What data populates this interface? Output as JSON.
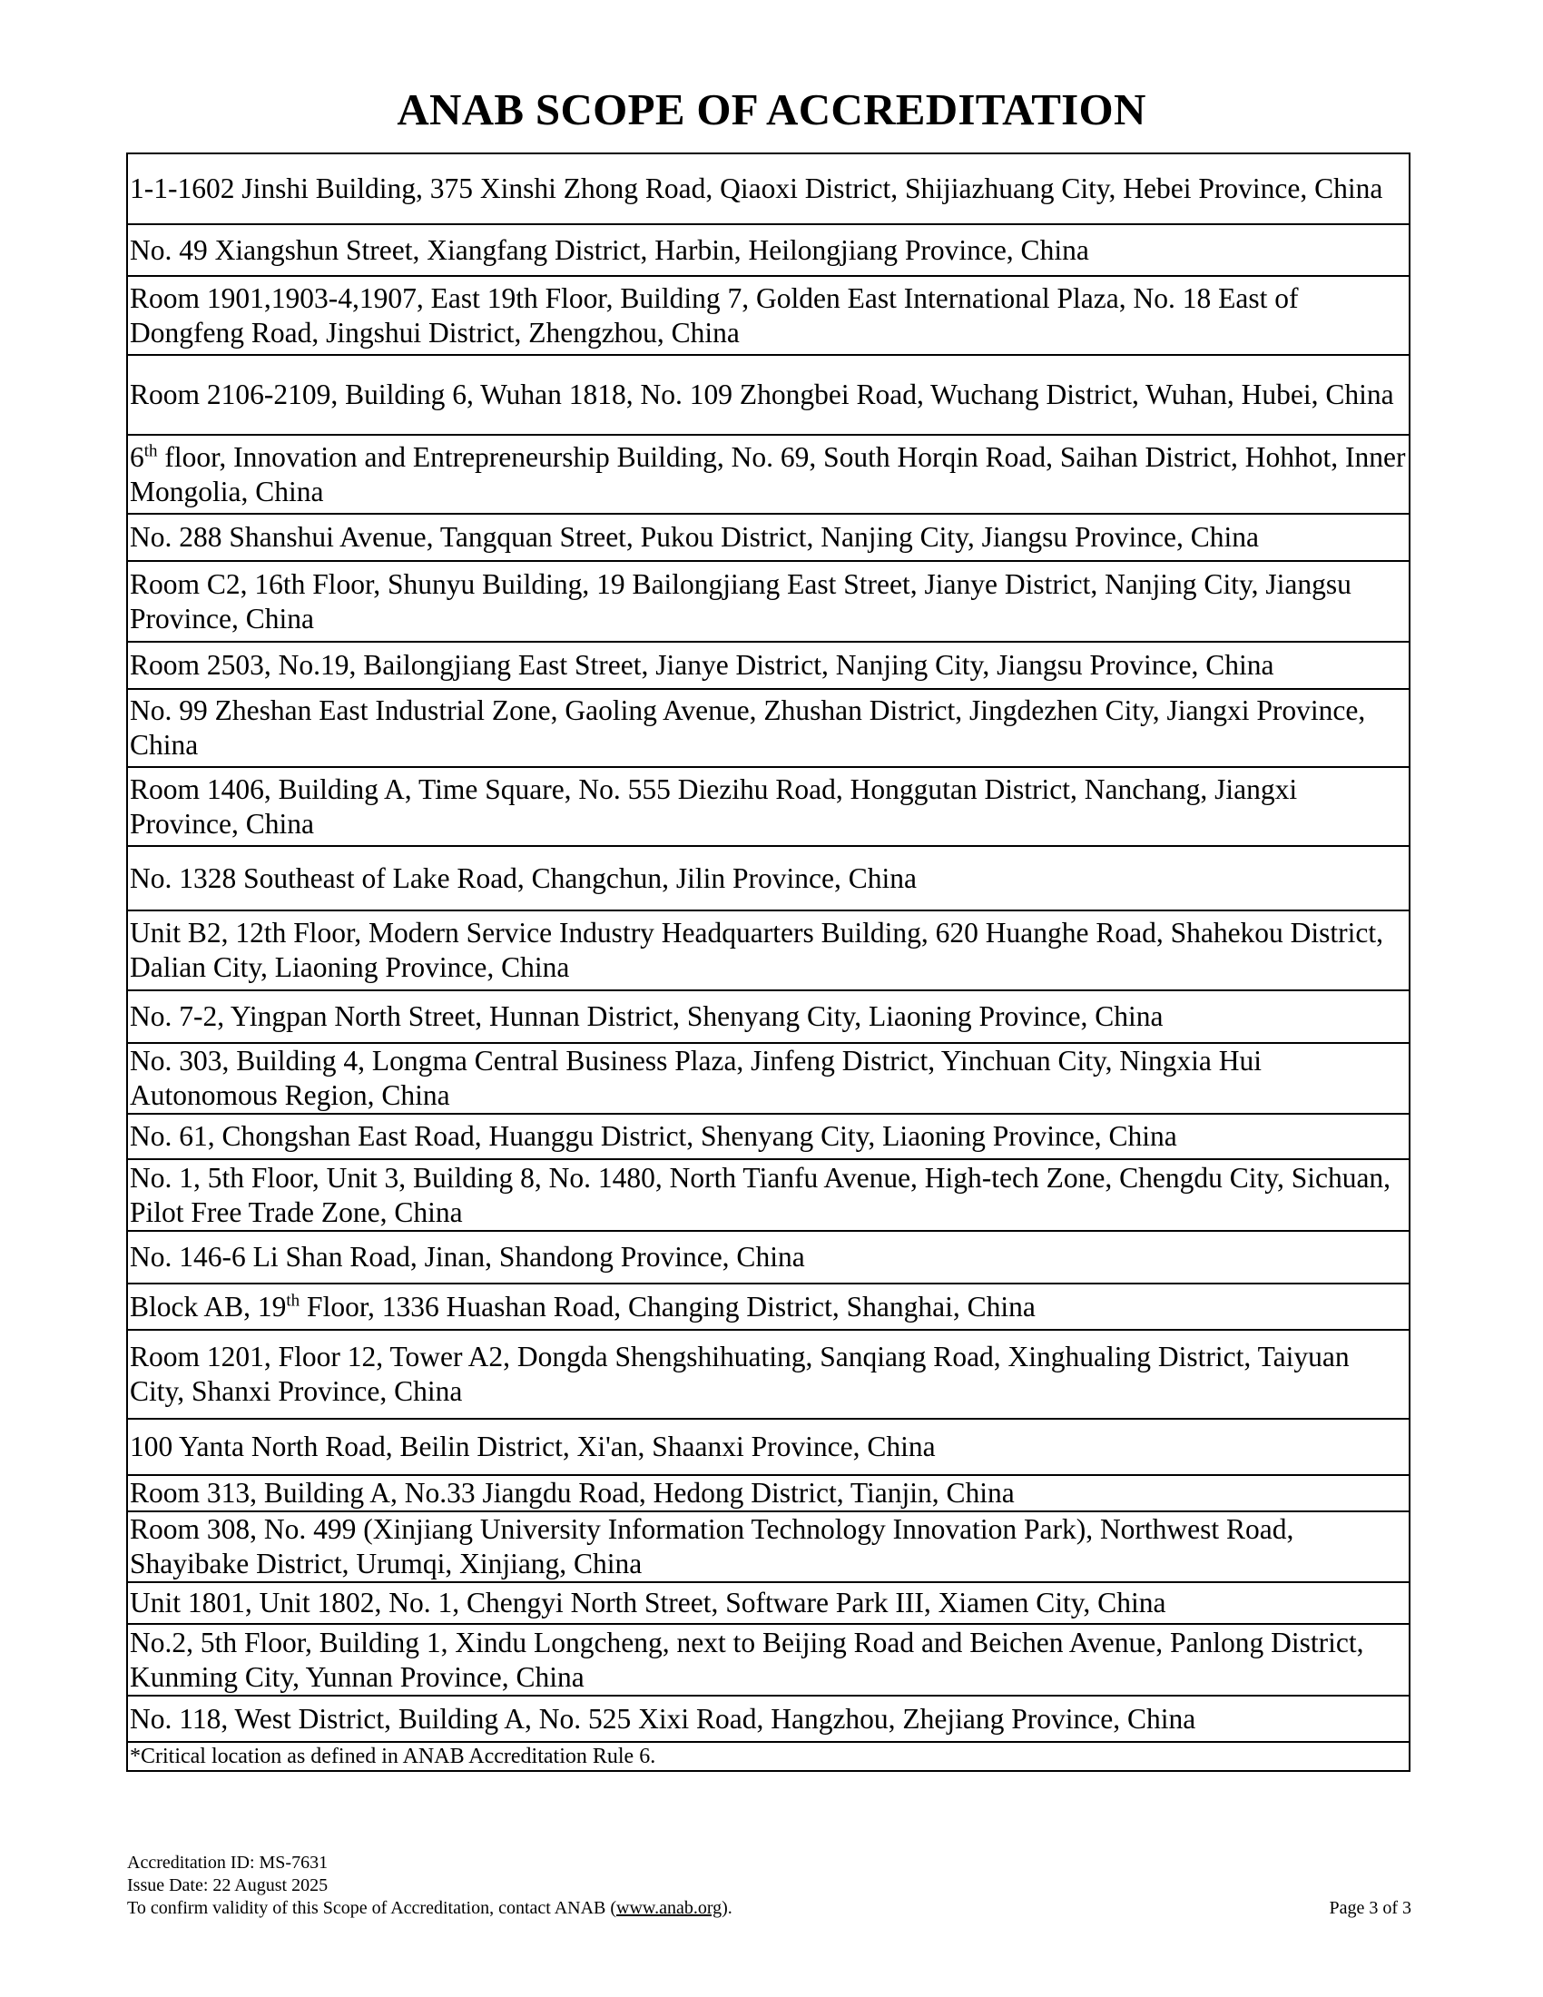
{
  "title": "ANAB SCOPE OF ACCREDITATION",
  "rows": [
    {
      "pre": "1-1-1602 Jinshi Building, 375 Xinshi Zhong Road, Qiaoxi District, Shijiazhuang City, Hebei Province, China"
    },
    {
      "pre": "No. 49 Xiangshun Street, Xiangfang District, Harbin, Heilongjiang Province, China"
    },
    {
      "pre": "Room 1901,1903-4,1907, East 19th Floor, Building 7, Golden East International Plaza, No. 18 East of Dongfeng Road,  Jingshui District, Zhengzhou, China"
    },
    {
      "pre": "Room 2106-2109, Building 6, Wuhan 1818, No. 109 Zhongbei Road, Wuchang District, Wuhan, Hubei, China"
    },
    {
      "pre": "6",
      "sup": "th",
      "post": " floor, Innovation and Entrepreneurship Building, No. 69, South Horqin Road, Saihan District, Hohhot, Inner Mongolia, China"
    },
    {
      "pre": "No. 288 Shanshui Avenue, Tangquan Street, Pukou District, Nanjing City, Jiangsu Province, China"
    },
    {
      "pre": "Room C2, 16th Floor, Shunyu Building, 19 Bailongjiang East Street, Jianye District, Nanjing City, Jiangsu Province, China"
    },
    {
      "pre": "Room 2503, No.19, Bailongjiang East Street, Jianye District, Nanjing  City, Jiangsu Province, China"
    },
    {
      "pre": "No. 99 Zheshan East Industrial Zone, Gaoling Avenue, Zhushan District, Jingdezhen City, Jiangxi Province, China"
    },
    {
      "pre": "Room 1406, Building A, Time Square, No. 555 Diezihu Road, Honggutan District, Nanchang, Jiangxi Province, China"
    },
    {
      "pre": "No. 1328 Southeast of Lake Road, Changchun, Jilin Province, China"
    },
    {
      "pre": "Unit B2, 12th Floor, Modern Service Industry Headquarters Building, 620 Huanghe Road, Shahekou District, Dalian City, Liaoning Province, China"
    },
    {
      "pre": "No. 7-2, Yingpan North Street, Hunnan District, Shenyang City, Liaoning Province, China"
    },
    {
      "pre": "No. 303, Building 4, Longma Central Business Plaza, Jinfeng District, Yinchuan City, Ningxia Hui Autonomous Region, China"
    },
    {
      "pre": "No. 61, Chongshan East Road, Huanggu District, Shenyang City, Liaoning Province, China"
    },
    {
      "pre": "No. 1, 5th Floor, Unit 3, Building 8, No. 1480, North Tianfu Avenue, High-tech Zone, Chengdu City, Sichuan, Pilot Free Trade Zone, China"
    },
    {
      "pre": "No. 146-6 Li Shan Road, Jinan, Shandong Province, China"
    },
    {
      "pre": "Block AB, 19",
      "sup": "th",
      "post": " Floor, 1336 Huashan Road, Changing District, Shanghai, China"
    },
    {
      "pre": "Room 1201, Floor 12, Tower A2, Dongda Shengshihuating, Sanqiang Road, Xinghualing District, Taiyuan City, Shanxi Province, China"
    },
    {
      "pre": "100 Yanta North Road, Beilin District, Xi'an, Shaanxi Province, China"
    },
    {
      "pre": "Room 313, Building A, No.33 Jiangdu Road, Hedong District, Tianjin, China"
    },
    {
      "pre": "Room 308, No. 499 (Xinjiang University Information Technology Innovation Park), Northwest Road, Shayibake District, Urumqi, Xinjiang, China"
    },
    {
      "pre": "Unit 1801, Unit 1802, No. 1, Chengyi North Street, Software Park III, Xiamen City, China"
    },
    {
      "pre": "No.2, 5th Floor, Building 1, Xindu Longcheng, next to Beijing Road and Beichen Avenue, Panlong District, Kunming City, Yunnan Province, China"
    },
    {
      "pre": "No. 118, West District, Building A, No. 525 Xixi Road, Hangzhou, Zhejiang Province, China"
    }
  ],
  "note": "*Critical location as defined in ANAB Accreditation Rule 6.",
  "footer": {
    "accreditation_id": "Accreditation ID: MS-7631",
    "issue_date": "Issue Date: 22 August 2025",
    "confirm_pre": "To confirm validity of this Scope of Accreditation, contact ANAB (",
    "confirm_link": "www.anab.org",
    "confirm_post": ").",
    "page": "Page 3 of 3"
  }
}
